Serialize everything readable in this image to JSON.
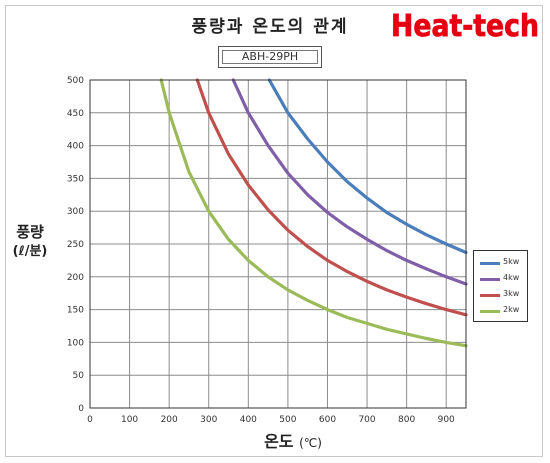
{
  "header": {
    "title": "풍량과 온도의 관계",
    "brand": "Heat-tech",
    "brand_color": "#e60012"
  },
  "chart_data": {
    "type": "line",
    "subtitle": "ABH-29PH",
    "xlabel": "온도",
    "xlabel_unit": "(℃)",
    "ylabel": "풍량",
    "ylabel_unit": "(ℓ/분)",
    "xlim": [
      0,
      950
    ],
    "ylim": [
      0,
      500
    ],
    "x_ticks": [
      0,
      100,
      200,
      300,
      400,
      500,
      600,
      700,
      800,
      900
    ],
    "y_ticks": [
      0,
      50,
      100,
      150,
      200,
      250,
      300,
      350,
      400,
      450,
      500
    ],
    "grid": true,
    "legend_position": "right",
    "series": [
      {
        "name": "5kw",
        "color": "#4a7ebb",
        "x": [
          453,
          500,
          550,
          600,
          650,
          700,
          750,
          800,
          850,
          900,
          950
        ],
        "y": [
          500,
          450,
          410,
          375,
          345,
          320,
          298,
          280,
          264,
          250,
          237
        ]
      },
      {
        "name": "4kw",
        "color": "#7f5fa8",
        "x": [
          362,
          400,
          450,
          500,
          550,
          600,
          650,
          700,
          750,
          800,
          850,
          900,
          950
        ],
        "y": [
          500,
          450,
          400,
          358,
          325,
          298,
          276,
          257,
          240,
          225,
          212,
          200,
          189
        ]
      },
      {
        "name": "3kw",
        "color": "#c0504d",
        "x": [
          271,
          300,
          350,
          400,
          450,
          500,
          550,
          600,
          650,
          700,
          750,
          800,
          850,
          900,
          950
        ],
        "y": [
          500,
          450,
          387,
          340,
          302,
          271,
          246,
          225,
          208,
          193,
          180,
          169,
          159,
          150,
          142
        ]
      },
      {
        "name": "2kw",
        "color": "#9bbb59",
        "x": [
          180,
          200,
          250,
          300,
          350,
          400,
          450,
          500,
          550,
          600,
          650,
          700,
          750,
          800,
          850,
          900,
          950
        ],
        "y": [
          500,
          450,
          360,
          300,
          257,
          225,
          200,
          180,
          164,
          150,
          138,
          129,
          120,
          113,
          106,
          100,
          95
        ]
      }
    ]
  }
}
